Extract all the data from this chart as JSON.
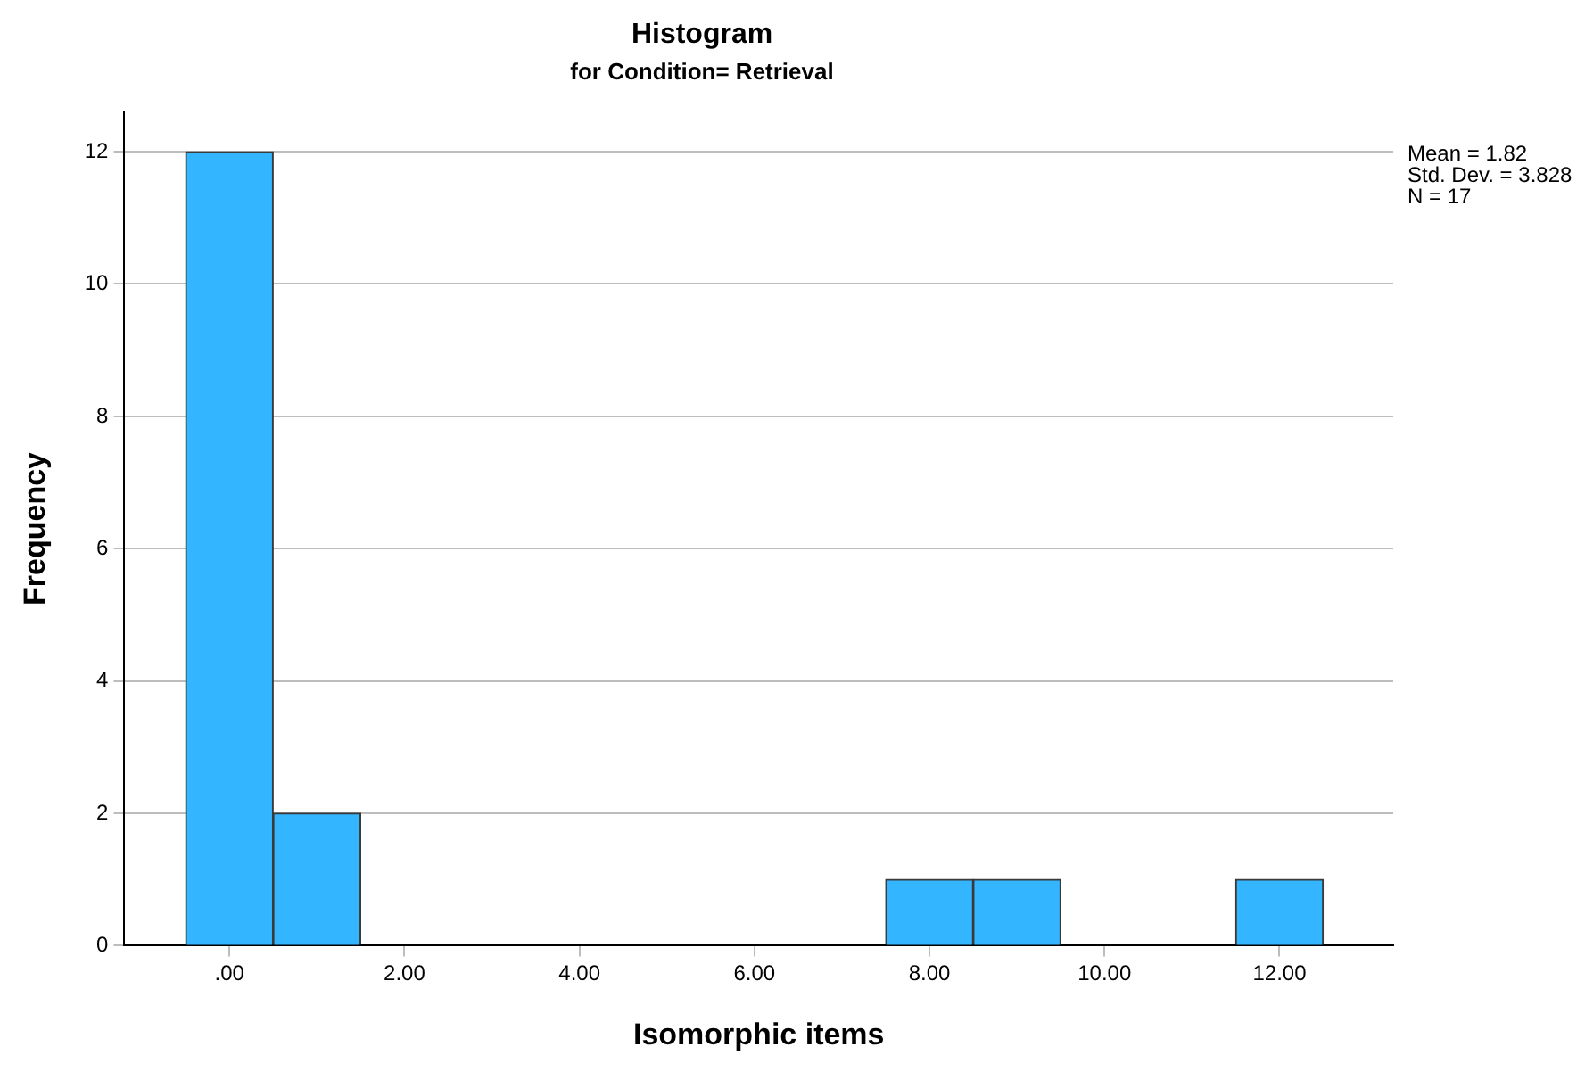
{
  "chart_data": {
    "type": "histogram",
    "title": "Histogram",
    "subtitle": "for Condition= Retrieval",
    "xlabel": "Isomorphic items",
    "ylabel": "Frequency",
    "bins": [
      -0.5,
      0.5,
      1.5,
      2.5,
      3.5,
      4.5,
      5.5,
      6.5,
      7.5,
      8.5,
      9.5,
      10.5,
      11.5,
      12.5
    ],
    "values": [
      12,
      2,
      0,
      0,
      0,
      0,
      0,
      0,
      1,
      1,
      0,
      0,
      1
    ],
    "color": "#33b6ff",
    "xlim": [
      -1.2,
      13.3
    ],
    "xticks": [
      {
        "value": 0,
        "label": ".00"
      },
      {
        "value": 2,
        "label": "2.00"
      },
      {
        "value": 4,
        "label": "4.00"
      },
      {
        "value": 6,
        "label": "6.00"
      },
      {
        "value": 8,
        "label": "8.00"
      },
      {
        "value": 10,
        "label": "10.00"
      },
      {
        "value": 12,
        "label": "12.00"
      }
    ],
    "ylim": [
      0,
      12.6
    ],
    "yticks": [
      0,
      2,
      4,
      6,
      8,
      10,
      12
    ],
    "grid": "y",
    "legend": false,
    "annotations": [
      "Mean = 1.82",
      "Std. Dev. = 3.828",
      "N = 17"
    ]
  }
}
